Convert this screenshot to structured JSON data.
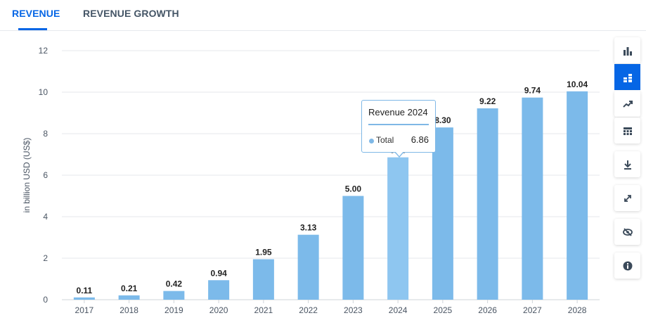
{
  "tabs": [
    {
      "label": "REVENUE",
      "active": true
    },
    {
      "label": "REVENUE GROWTH",
      "active": false
    }
  ],
  "colors": {
    "accent": "#0666e5",
    "bar": "#7cbaea",
    "bar_highlight": "#8ec6f0",
    "grid": "#e4e7eb",
    "text": "#445566"
  },
  "chart_data": {
    "type": "bar",
    "categories": [
      "2017",
      "2018",
      "2019",
      "2020",
      "2021",
      "2022",
      "2023",
      "2024",
      "2025",
      "2026",
      "2027",
      "2028"
    ],
    "values": [
      0.11,
      0.21,
      0.42,
      0.94,
      1.95,
      3.13,
      5.0,
      6.86,
      8.3,
      9.22,
      9.74,
      10.04
    ],
    "data_labels": [
      "0.11",
      "0.21",
      "0.42",
      "0.94",
      "1.95",
      "3.13",
      "5.00",
      "6.86",
      "8.30",
      "9.22",
      "9.74",
      "10.04"
    ],
    "title": "",
    "xlabel": "",
    "ylabel": "in billion USD (US$)",
    "ylim": [
      0,
      12
    ],
    "yticks": [
      0,
      2,
      4,
      6,
      8,
      10,
      12
    ],
    "grid": true,
    "legend": "none",
    "highlighted_category": "2024"
  },
  "tooltip": {
    "title": "Revenue  2024",
    "label": "Total",
    "value": "6.86"
  },
  "side_buttons": [
    {
      "icon": "bar-chart-icon",
      "active": false
    },
    {
      "icon": "stacked-bars-icon",
      "active": true
    },
    {
      "icon": "trend-line-icon",
      "active": false
    },
    {
      "icon": "table-icon",
      "active": false
    },
    {
      "icon": "download-icon",
      "active": false
    },
    {
      "icon": "fullscreen-icon",
      "active": false
    },
    {
      "icon": "hide-eye-icon",
      "active": false
    },
    {
      "icon": "info-icon",
      "active": false
    }
  ]
}
